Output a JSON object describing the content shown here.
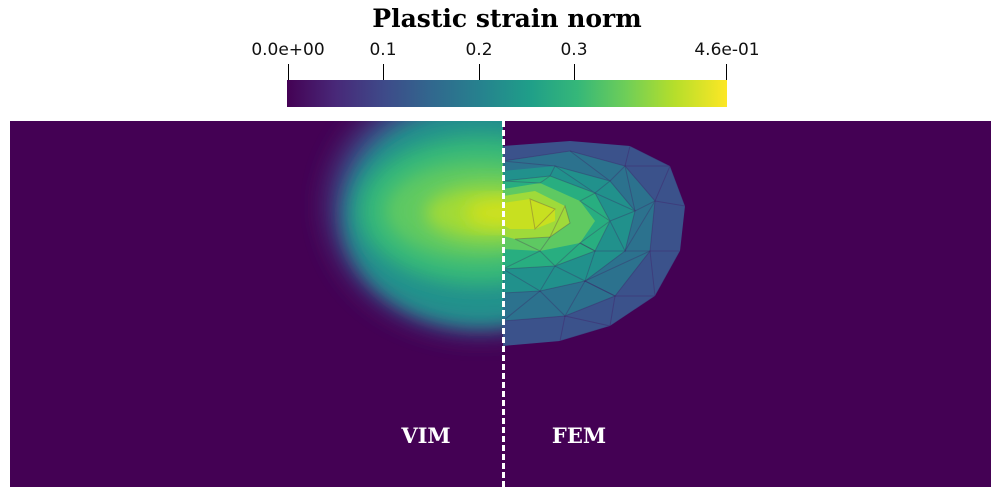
{
  "colorbar": {
    "title": "Plastic strain norm",
    "ticks": [
      {
        "label": "0.0e+00",
        "value": 0.0
      },
      {
        "label": "0.1",
        "value": 0.1
      },
      {
        "label": "0.2",
        "value": 0.2
      },
      {
        "label": "0.3",
        "value": 0.3
      },
      {
        "label": "4.6e-01",
        "value": 0.46
      }
    ],
    "range": [
      0.0,
      0.46
    ],
    "colormap": "viridis",
    "colors": {
      "low": "#440154",
      "high": "#fde725"
    }
  },
  "plot": {
    "left_label": "VIM",
    "right_label": "FEM",
    "background_color": "#440154"
  }
}
